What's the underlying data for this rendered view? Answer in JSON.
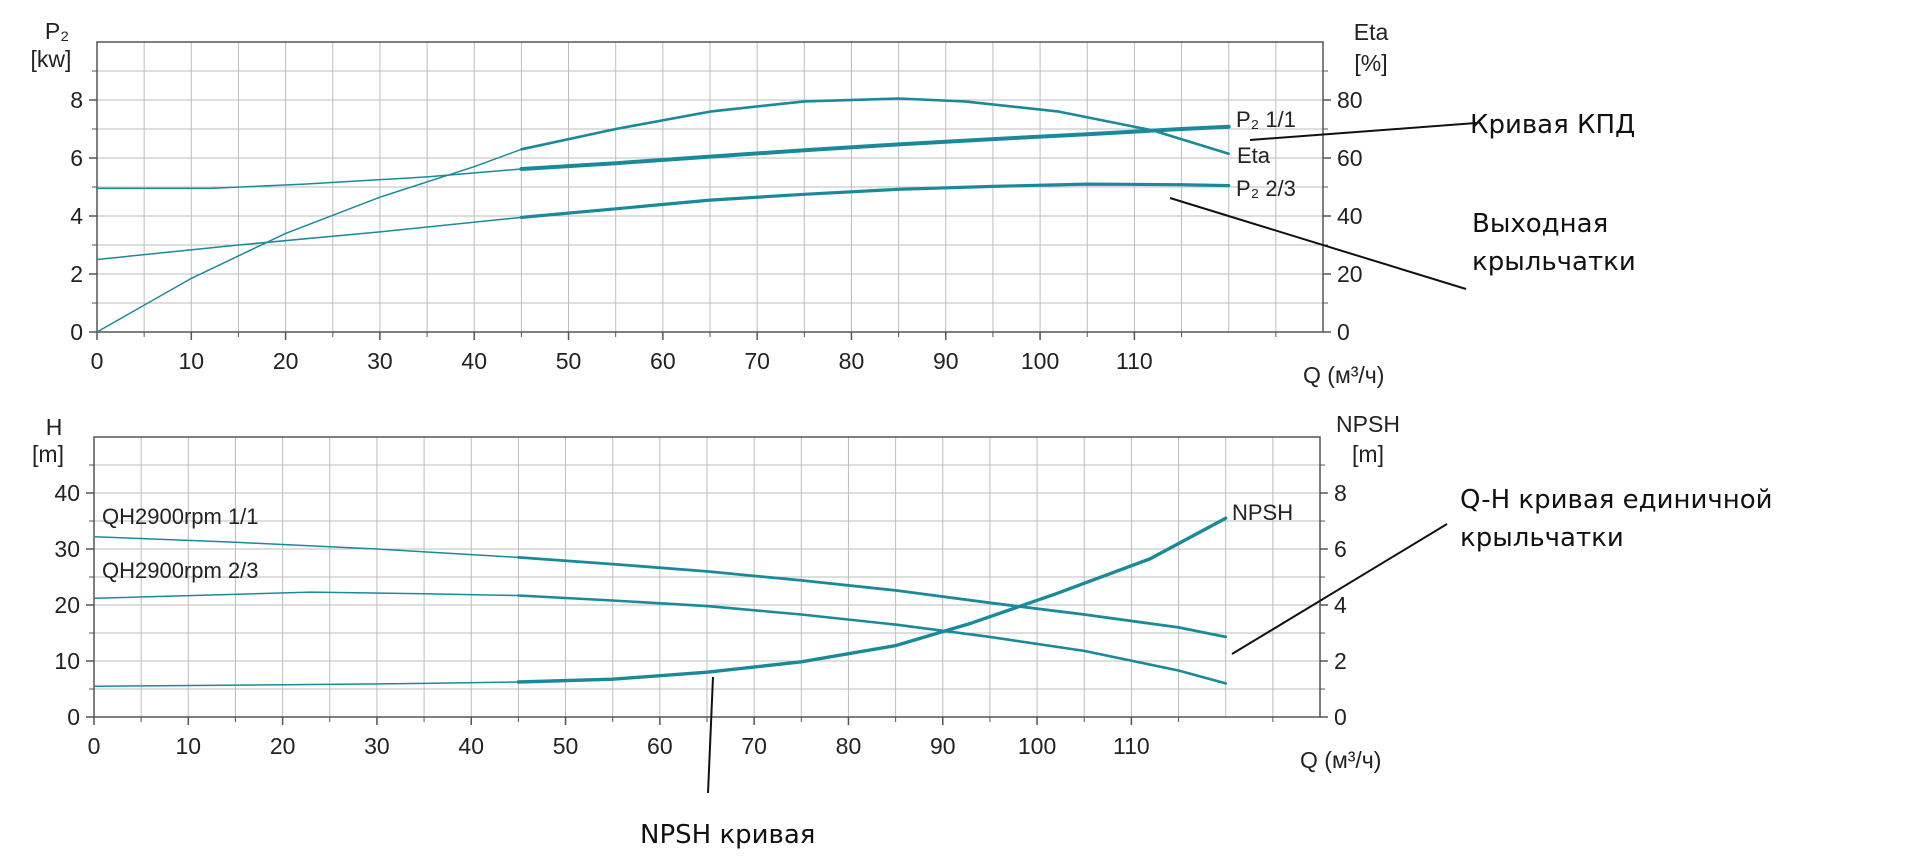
{
  "colors": {
    "curve": "#1a8a9a",
    "grid": "#bdbdbd",
    "frame": "#555555",
    "annotation": "#111111"
  },
  "chart_data": [
    {
      "type": "line",
      "x_ticks": [
        "0",
        "10",
        "20",
        "30",
        "40",
        "50",
        "60",
        "70",
        "80",
        "90",
        "100",
        "110"
      ],
      "xlabel": "Q (м³/ч)",
      "xlim": [
        0,
        130
      ],
      "left_axis": {
        "label_top": "P₂",
        "label_unit": "[kw]",
        "ticks": [
          "0",
          "2",
          "4",
          "6",
          "8"
        ],
        "ylim": [
          0,
          10
        ]
      },
      "right_axis": {
        "label_top": "Eta",
        "label_unit": "[%]",
        "ticks": [
          "0",
          "20",
          "40",
          "60",
          "80"
        ],
        "ylim": [
          0,
          100
        ]
      },
      "grid": true,
      "series": [
        {
          "name": "P₂ 1/1",
          "axis": "left",
          "x": [
            0,
            12,
            22,
            35,
            45,
            55,
            65,
            75,
            85,
            95,
            105,
            115,
            120
          ],
          "values": [
            4.95,
            4.95,
            5.1,
            5.35,
            5.62,
            5.82,
            6.05,
            6.27,
            6.47,
            6.65,
            6.82,
            7.0,
            7.08
          ]
        },
        {
          "name": "Eta",
          "axis": "right",
          "x": [
            0,
            10,
            20,
            30,
            40,
            45,
            55,
            65,
            75,
            85,
            92,
            102,
            112,
            120
          ],
          "values": [
            0,
            18.5,
            34,
            46.5,
            57,
            63,
            70,
            76,
            79.5,
            80.5,
            79.5,
            76,
            69.5,
            61.5
          ]
        },
        {
          "name": "P₂ 2/3",
          "axis": "left",
          "x": [
            0,
            15,
            30,
            45,
            55,
            65,
            75,
            85,
            95,
            105,
            115,
            120
          ],
          "values": [
            2.5,
            3.0,
            3.45,
            3.95,
            4.25,
            4.55,
            4.75,
            4.92,
            5.02,
            5.1,
            5.08,
            5.05
          ]
        }
      ]
    },
    {
      "type": "line",
      "x_ticks": [
        "0",
        "10",
        "20",
        "30",
        "40",
        "50",
        "60",
        "70",
        "80",
        "90",
        "100",
        "110"
      ],
      "xlabel": "Q (м³/ч)",
      "xlim": [
        0,
        130
      ],
      "left_axis": {
        "label_top": "H",
        "label_unit": "[m]",
        "ticks": [
          "0",
          "10",
          "20",
          "30",
          "40"
        ],
        "ylim": [
          0,
          50
        ]
      },
      "right_axis": {
        "label_top": "NPSH",
        "label_unit": "[m]",
        "ticks": [
          "0",
          "2",
          "4",
          "6",
          "8"
        ],
        "ylim": [
          0,
          10
        ]
      },
      "grid": true,
      "series": [
        {
          "name": "QH2900rpm 1/1",
          "axis": "left",
          "x": [
            0,
            15,
            30,
            45,
            55,
            65,
            75,
            85,
            95,
            105,
            115,
            120
          ],
          "values": [
            32.2,
            31.2,
            30.0,
            28.5,
            27.3,
            26.0,
            24.4,
            22.6,
            20.4,
            18.3,
            16.0,
            14.3
          ]
        },
        {
          "name": "QH2900rpm 2/3",
          "axis": "left",
          "x": [
            0,
            23,
            35,
            45,
            55,
            65,
            75,
            85,
            95,
            105,
            115,
            120
          ],
          "values": [
            21.2,
            22.3,
            22.0,
            21.7,
            20.8,
            19.8,
            18.3,
            16.5,
            14.3,
            11.8,
            8.3,
            6.0
          ]
        },
        {
          "name": "NPSH",
          "axis": "right",
          "x": [
            0,
            20,
            35,
            45,
            55,
            65,
            75,
            85,
            93,
            102,
            112,
            120
          ],
          "values": [
            1.1,
            1.15,
            1.2,
            1.25,
            1.35,
            1.6,
            1.97,
            2.55,
            3.35,
            4.4,
            5.65,
            7.1
          ]
        }
      ]
    }
  ],
  "annotations": {
    "efficiency": "Кривая КПД",
    "impeller_out_line1": "Выходная",
    "impeller_out_line2": "крыльчатки",
    "qh_line1": "Q-H кривая единичной",
    "qh_line2": "крыльчатки",
    "npsh": "NPSH кривая"
  }
}
